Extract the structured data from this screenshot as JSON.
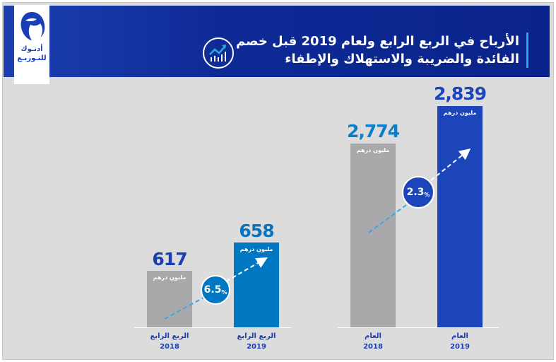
{
  "header": {
    "title_line1": "الأرباح في الربع الرابع ولعام 2019 قبل خصم",
    "title_line2": "الفائدة والضريبة والاستهلاك والإطفاء",
    "logo_line1": "أدنـوك",
    "logo_line2": "للتـوزيـع",
    "icon": "growth-chart-icon"
  },
  "chart_data": [
    {
      "type": "bar",
      "unit": "مليون درهم",
      "categories": [
        "الربع الرابع 2018",
        "الربع الرابع 2019"
      ],
      "values": [
        617,
        658
      ],
      "value_labels": [
        "617",
        "658"
      ],
      "change_label": "6.5",
      "percent_sign": "%",
      "colors": [
        "#a9a9ab",
        "#0078c1"
      ],
      "value_colors": [
        "#1a3fb5",
        "#0a72bd"
      ]
    },
    {
      "type": "bar",
      "unit": "مليون درهم",
      "categories": [
        "العام 2018",
        "العام 2019"
      ],
      "values": [
        2774,
        2839
      ],
      "value_labels": [
        "2,774",
        "2,839"
      ],
      "change_label": "2.3",
      "percent_sign": "%",
      "colors": [
        "#a9a9ab",
        "#1b45b8"
      ],
      "value_colors": [
        "#0a7fc7",
        "#1b45b8"
      ]
    }
  ],
  "labels": {
    "q4": "الربع الرابع",
    "year": "العام",
    "y2018": "2018",
    "y2019": "2019"
  }
}
